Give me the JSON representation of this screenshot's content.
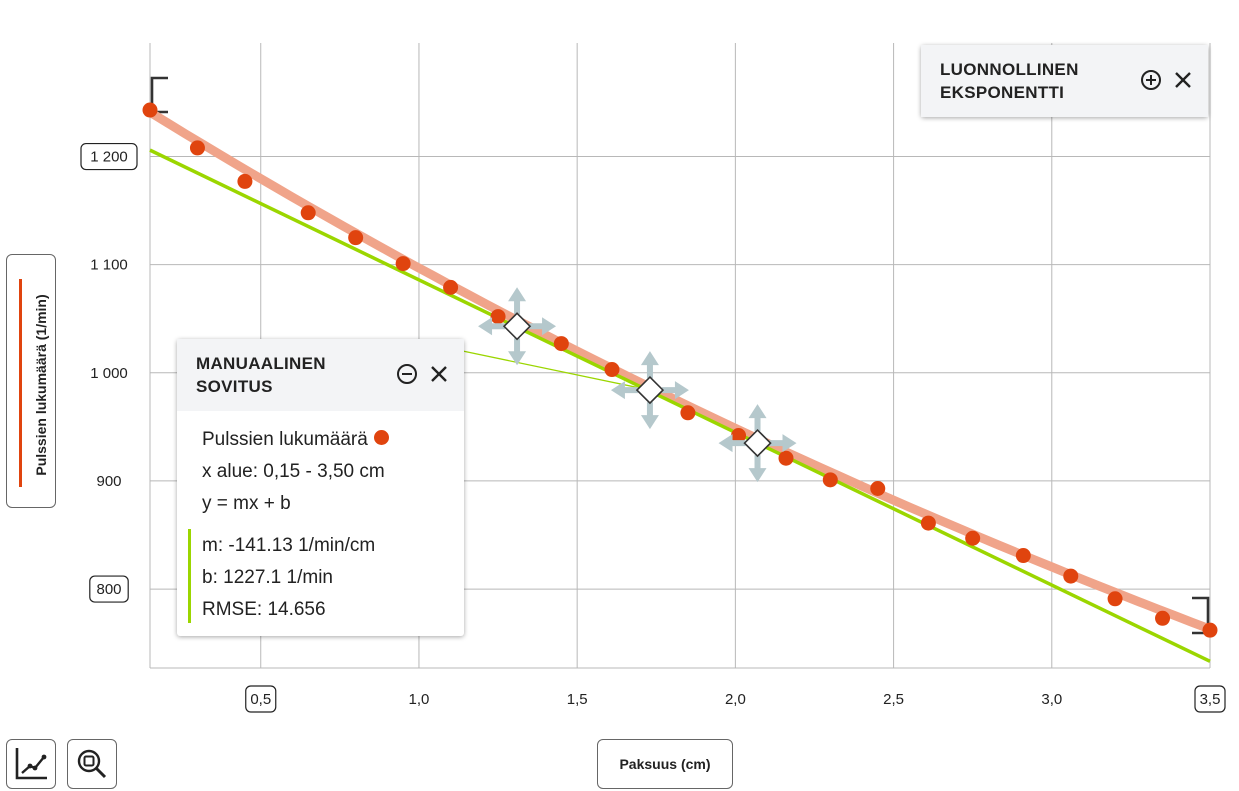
{
  "chart_data": {
    "type": "scatter",
    "xlabel": "Paksuus (cm)",
    "ylabel": "Pulssien lukumäärä (1/min)",
    "x_ticks": [
      "0,5",
      "1,0",
      "1,5",
      "2,0",
      "2,5",
      "3,0",
      "3,5"
    ],
    "x_tick_values": [
      0.5,
      1.0,
      1.5,
      2.0,
      2.5,
      3.0,
      3.5
    ],
    "x_boxed_ticks": [
      0.5,
      3.5
    ],
    "y_ticks": [
      "800",
      "900",
      "1 000",
      "1 100",
      "1 200"
    ],
    "y_tick_values": [
      800,
      900,
      1000,
      1100,
      1200
    ],
    "y_boxed_ticks": [
      800,
      1200
    ],
    "xlim": [
      0.15,
      3.5
    ],
    "ylim": [
      727,
      1305
    ],
    "grid": true,
    "series": [
      {
        "name": "Pulssien lukumäärä",
        "color": "#e0440e",
        "x": [
          0.15,
          0.3,
          0.45,
          0.65,
          0.8,
          0.95,
          1.1,
          1.25,
          1.45,
          1.61,
          1.85,
          2.01,
          2.16,
          2.3,
          2.45,
          2.61,
          2.75,
          2.91,
          3.06,
          3.2,
          3.35,
          3.5
        ],
        "y": [
          1243,
          1208,
          1177,
          1148,
          1125,
          1101,
          1079,
          1052,
          1027,
          1003,
          963,
          942,
          921,
          901,
          893,
          861,
          847,
          831,
          812,
          791,
          773,
          762
        ]
      }
    ],
    "fits": [
      {
        "kind": "natural-exponential",
        "color": "#f0a48a",
        "x_range": [
          0.15,
          3.5
        ],
        "y_at_ends": [
          1241,
          763
        ]
      },
      {
        "kind": "linear",
        "color": "#9bd600",
        "m": -141.13,
        "b": 1227.1,
        "x_range": [
          0.15,
          3.5
        ]
      }
    ],
    "handles": [
      {
        "x": 1.31,
        "y": 1043
      },
      {
        "x": 1.73,
        "y": 984
      },
      {
        "x": 2.07,
        "y": 935
      }
    ],
    "leader_line": {
      "from": [
        1.14,
        1020
      ],
      "to": [
        1.73,
        984
      ]
    }
  },
  "y_axis_button": {
    "label": "Pulssien lukumäärä (1/min)",
    "swatch_color": "#e0440e"
  },
  "x_axis_button": {
    "label": "Paksuus (cm)"
  },
  "tools": [
    "line-chart-icon",
    "zoom-fit-icon"
  ],
  "exp_card": {
    "title_line1": "LUONNOLLINEN",
    "title_line2": "EKSPONENTTI"
  },
  "manual_card": {
    "title_line1": "MANUAALINEN",
    "title_line2": "SOVITUS",
    "series_name": "Pulssien lukumäärä",
    "x_range_text": "x alue: 0,15 - 3,50 cm",
    "formula": "y = mx + b",
    "m_text": "m: -141.13 1/min/cm",
    "b_text": "b: 1227.1 1/min",
    "rmse_text": "RMSE: 14.656",
    "accent_color": "#9bd600"
  }
}
